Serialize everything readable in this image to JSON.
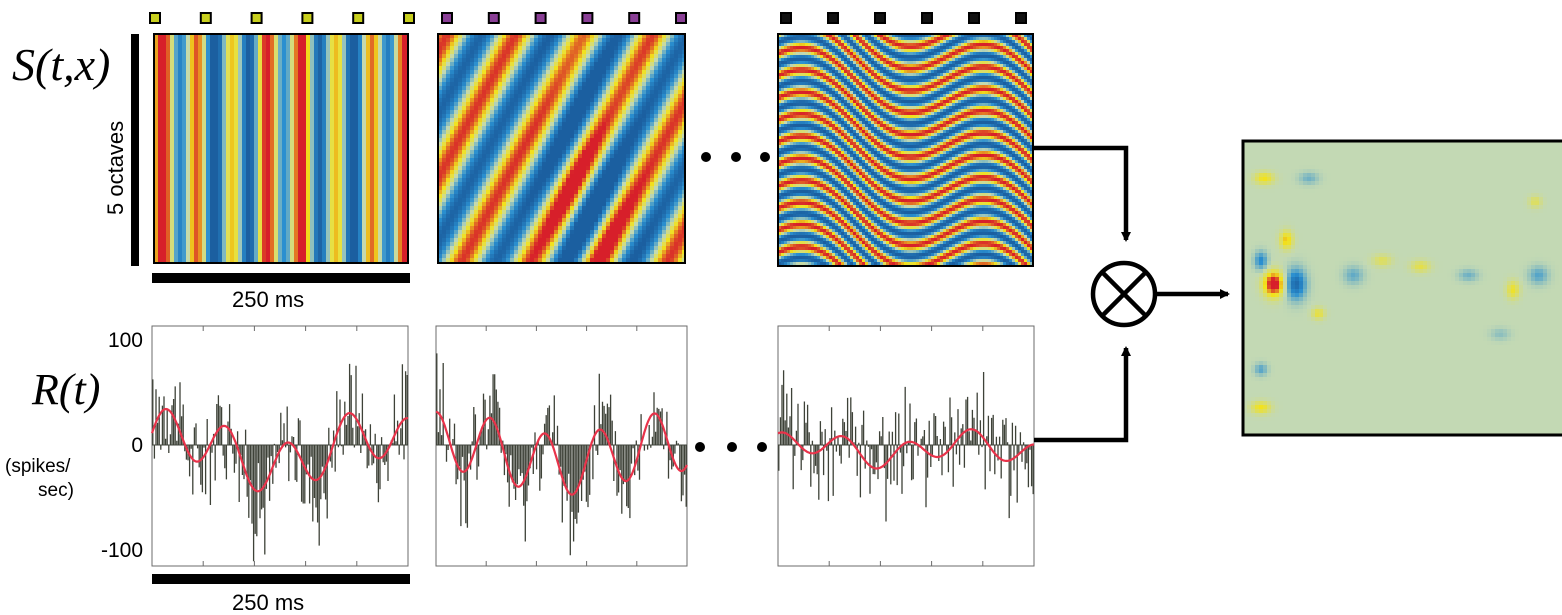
{
  "labels": {
    "stimulus": "S(t,x)",
    "stimulus_axis": "5 octaves",
    "stimulus_time": "250 ms",
    "response": "R(t)",
    "response_units_1": "(spikes/",
    "response_units_2": "sec)",
    "response_time": "250 ms",
    "tick_top": "100",
    "tick_zero": "0",
    "tick_bottom": "-100"
  },
  "markers": [
    {
      "color": "#c8cf1e",
      "count": 6
    },
    {
      "color": "#8a3f96",
      "count": 6
    },
    {
      "color": "#111111",
      "count": 6
    }
  ],
  "colors": {
    "red": "#d71f2a",
    "yellow": "#f2e21c",
    "pale": "#c3d9b4",
    "blue": "#2a8fd0",
    "darkblue": "#1b5fa0",
    "trace": "#e8334a",
    "bars": "#3e4238",
    "frame": "#000000"
  },
  "operator": "multiply-icon"
}
